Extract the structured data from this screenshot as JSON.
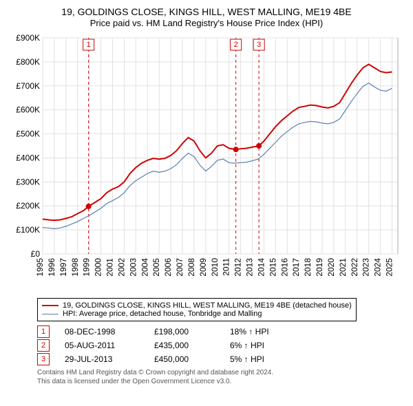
{
  "title_line1": "19, GOLDINGS CLOSE, KINGS HILL, WEST MALLING, ME19 4BE",
  "title_line2": "Price paid vs. HM Land Registry's House Price Index (HPI)",
  "chart": {
    "type": "line",
    "background_color": "#ffffff",
    "grid_color": "#e0e0e0",
    "plot_border_color": "#aaaaaa",
    "axis_text_color": "#000000",
    "x_years": [
      1995,
      1996,
      1997,
      1998,
      1999,
      2000,
      2001,
      2002,
      2003,
      2004,
      2005,
      2006,
      2007,
      2008,
      2009,
      2010,
      2011,
      2012,
      2013,
      2014,
      2015,
      2016,
      2017,
      2018,
      2019,
      2020,
      2021,
      2022,
      2023,
      2024,
      2025
    ],
    "x_min": 1995,
    "x_max": 2025.5,
    "y_min": 0,
    "y_max": 900,
    "y_tick_step": 100,
    "y_label_prefix": "£",
    "y_label_suffix": "K",
    "y_label_zero": "£0",
    "series": [
      {
        "name": "property",
        "label": "19, GOLDINGS CLOSE, KINGS HILL, WEST MALLING, ME19 4BE (detached house)",
        "color": "#d00000",
        "line_width": 2,
        "points": [
          [
            1995.0,
            145
          ],
          [
            1995.5,
            142
          ],
          [
            1996.0,
            140
          ],
          [
            1996.5,
            142
          ],
          [
            1997.0,
            148
          ],
          [
            1997.5,
            155
          ],
          [
            1998.0,
            168
          ],
          [
            1998.5,
            180
          ],
          [
            1998.94,
            198
          ],
          [
            1999.5,
            215
          ],
          [
            2000.0,
            230
          ],
          [
            2000.5,
            255
          ],
          [
            2001.0,
            270
          ],
          [
            2001.5,
            280
          ],
          [
            2002.0,
            300
          ],
          [
            2002.5,
            335
          ],
          [
            2003.0,
            360
          ],
          [
            2003.5,
            378
          ],
          [
            2004.0,
            390
          ],
          [
            2004.5,
            398
          ],
          [
            2005.0,
            395
          ],
          [
            2005.5,
            398
          ],
          [
            2006.0,
            410
          ],
          [
            2006.5,
            430
          ],
          [
            2007.0,
            460
          ],
          [
            2007.5,
            485
          ],
          [
            2008.0,
            470
          ],
          [
            2008.5,
            430
          ],
          [
            2009.0,
            400
          ],
          [
            2009.5,
            420
          ],
          [
            2010.0,
            450
          ],
          [
            2010.5,
            455
          ],
          [
            2011.0,
            440
          ],
          [
            2011.59,
            435
          ],
          [
            2012.0,
            438
          ],
          [
            2012.5,
            440
          ],
          [
            2013.0,
            445
          ],
          [
            2013.57,
            450
          ],
          [
            2014.0,
            470
          ],
          [
            2014.5,
            500
          ],
          [
            2015.0,
            530
          ],
          [
            2015.5,
            555
          ],
          [
            2016.0,
            575
          ],
          [
            2016.5,
            595
          ],
          [
            2017.0,
            610
          ],
          [
            2017.5,
            615
          ],
          [
            2018.0,
            620
          ],
          [
            2018.5,
            618
          ],
          [
            2019.0,
            612
          ],
          [
            2019.5,
            608
          ],
          [
            2020.0,
            615
          ],
          [
            2020.5,
            630
          ],
          [
            2021.0,
            670
          ],
          [
            2021.5,
            710
          ],
          [
            2022.0,
            745
          ],
          [
            2022.5,
            775
          ],
          [
            2023.0,
            790
          ],
          [
            2023.5,
            775
          ],
          [
            2024.0,
            760
          ],
          [
            2024.5,
            755
          ],
          [
            2025.0,
            758
          ]
        ]
      },
      {
        "name": "hpi",
        "label": "HPI: Average price, detached house, Tonbridge and Malling",
        "color": "#5b7fb0",
        "line_width": 1.2,
        "points": [
          [
            1995.0,
            110
          ],
          [
            1995.5,
            108
          ],
          [
            1996.0,
            105
          ],
          [
            1996.5,
            108
          ],
          [
            1997.0,
            115
          ],
          [
            1997.5,
            125
          ],
          [
            1998.0,
            135
          ],
          [
            1998.5,
            148
          ],
          [
            1999.0,
            160
          ],
          [
            1999.5,
            175
          ],
          [
            2000.0,
            190
          ],
          [
            2000.5,
            210
          ],
          [
            2001.0,
            222
          ],
          [
            2001.5,
            235
          ],
          [
            2002.0,
            255
          ],
          [
            2002.5,
            285
          ],
          [
            2003.0,
            305
          ],
          [
            2003.5,
            320
          ],
          [
            2004.0,
            335
          ],
          [
            2004.5,
            345
          ],
          [
            2005.0,
            340
          ],
          [
            2005.5,
            345
          ],
          [
            2006.0,
            355
          ],
          [
            2006.5,
            372
          ],
          [
            2007.0,
            398
          ],
          [
            2007.5,
            420
          ],
          [
            2008.0,
            405
          ],
          [
            2008.5,
            370
          ],
          [
            2009.0,
            345
          ],
          [
            2009.5,
            365
          ],
          [
            2010.0,
            390
          ],
          [
            2010.5,
            395
          ],
          [
            2011.0,
            380
          ],
          [
            2011.5,
            378
          ],
          [
            2012.0,
            380
          ],
          [
            2012.5,
            382
          ],
          [
            2013.0,
            388
          ],
          [
            2013.5,
            395
          ],
          [
            2014.0,
            415
          ],
          [
            2014.5,
            440
          ],
          [
            2015.0,
            465
          ],
          [
            2015.5,
            490
          ],
          [
            2016.0,
            510
          ],
          [
            2016.5,
            528
          ],
          [
            2017.0,
            542
          ],
          [
            2017.5,
            548
          ],
          [
            2018.0,
            552
          ],
          [
            2018.5,
            550
          ],
          [
            2019.0,
            545
          ],
          [
            2019.5,
            542
          ],
          [
            2020.0,
            548
          ],
          [
            2020.5,
            562
          ],
          [
            2021.0,
            598
          ],
          [
            2021.5,
            635
          ],
          [
            2022.0,
            668
          ],
          [
            2022.5,
            698
          ],
          [
            2023.0,
            712
          ],
          [
            2023.5,
            695
          ],
          [
            2024.0,
            682
          ],
          [
            2024.5,
            678
          ],
          [
            2025.0,
            690
          ]
        ]
      }
    ],
    "sale_markers": {
      "color": "#d00000",
      "radius": 4,
      "points": [
        {
          "n": "1",
          "x": 1998.94,
          "y": 198
        },
        {
          "n": "2",
          "x": 2011.59,
          "y": 435
        },
        {
          "n": "3",
          "x": 2013.57,
          "y": 450
        }
      ]
    },
    "event_lines": {
      "color": "#d00000",
      "dash": "4 4"
    }
  },
  "events": [
    {
      "n": "1",
      "date": "08-DEC-1998",
      "price": "£198,000",
      "delta": "18% ↑ HPI"
    },
    {
      "n": "2",
      "date": "05-AUG-2011",
      "price": "£435,000",
      "delta": "6% ↑ HPI"
    },
    {
      "n": "3",
      "date": "29-JUL-2013",
      "price": "£450,000",
      "delta": "5% ↑ HPI"
    }
  ],
  "footer_line1": "Contains HM Land Registry data © Crown copyright and database right 2024.",
  "footer_line2": "This data is licensed under the Open Government Licence v3.0."
}
